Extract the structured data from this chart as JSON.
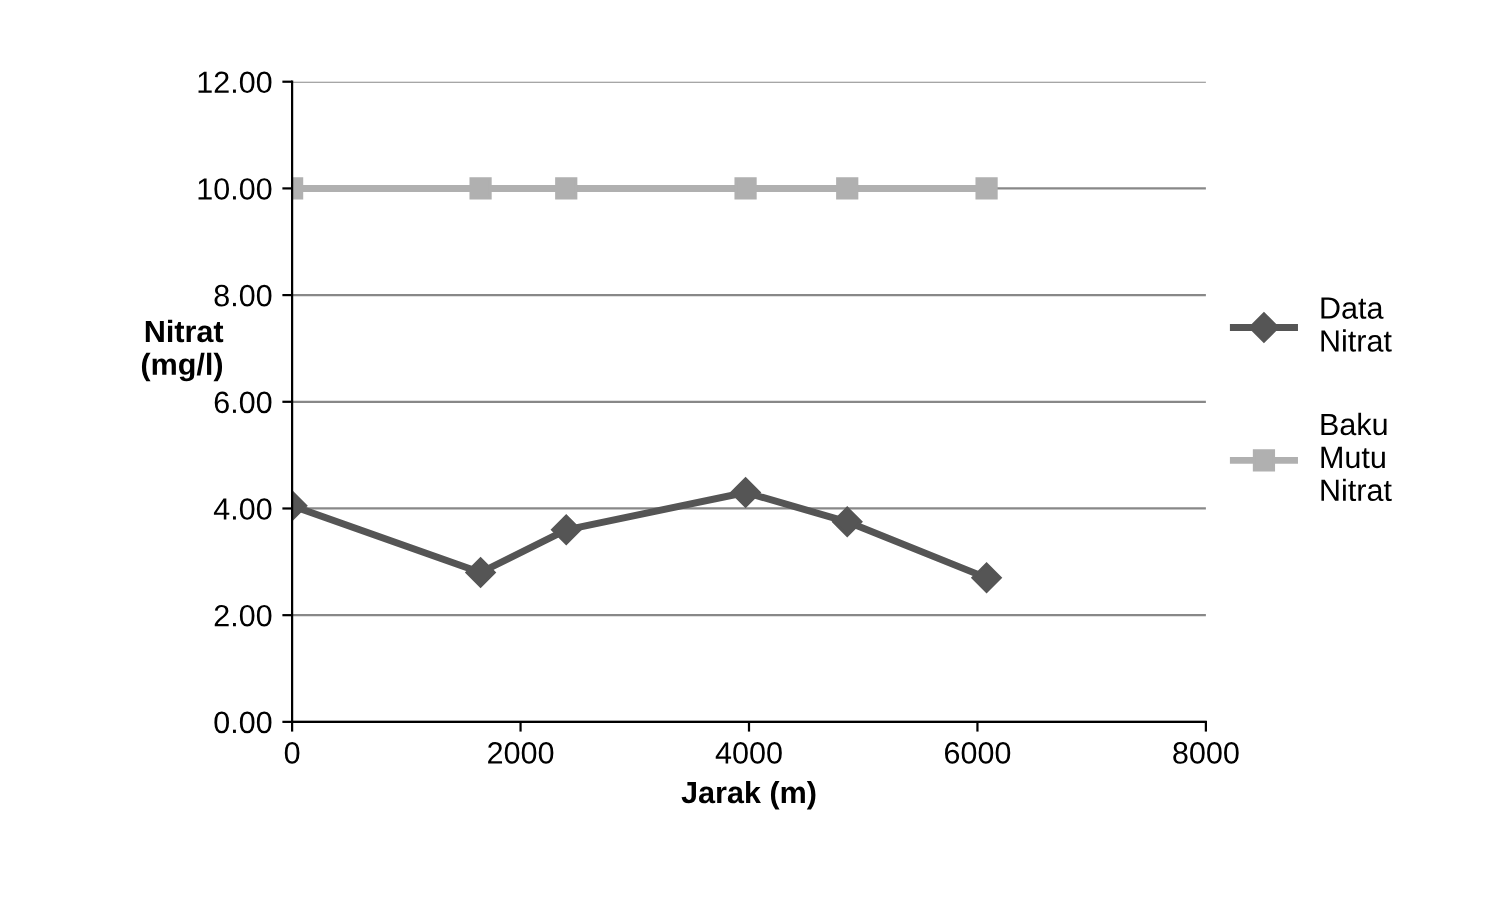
{
  "chart_data": {
    "type": "line",
    "xlabel": "Jarak (m)",
    "ylabel": "Nitrat\n(mg/l)",
    "series": [
      {
        "name": "Data\nNitrat",
        "color": "#555555",
        "marker": "diamond",
        "x": [
          0,
          1650,
          2400,
          3970,
          4860,
          6080
        ],
        "values": [
          4.05,
          2.8,
          3.6,
          4.3,
          3.75,
          2.7
        ]
      },
      {
        "name": "Baku\nMutu\nNitrat",
        "color": "#b0b0b0",
        "marker": "square",
        "x": [
          0,
          1650,
          2400,
          3970,
          4860,
          6080
        ],
        "values": [
          10,
          10,
          10,
          10,
          10,
          10
        ]
      }
    ],
    "xlim": [
      0,
      8000
    ],
    "xticks": [
      0,
      2000,
      4000,
      6000,
      8000
    ],
    "ylim": [
      0,
      12
    ],
    "yticks": [
      {
        "value": 0,
        "label": "0.00"
      },
      {
        "value": 2,
        "label": "2.00"
      },
      {
        "value": 4,
        "label": "4.00"
      },
      {
        "value": 6,
        "label": "6.00"
      },
      {
        "value": 8,
        "label": "8.00"
      },
      {
        "value": 10,
        "label": "10.00"
      },
      {
        "value": 12,
        "label": "12.00"
      }
    ],
    "grid": "y",
    "legend": "right"
  }
}
